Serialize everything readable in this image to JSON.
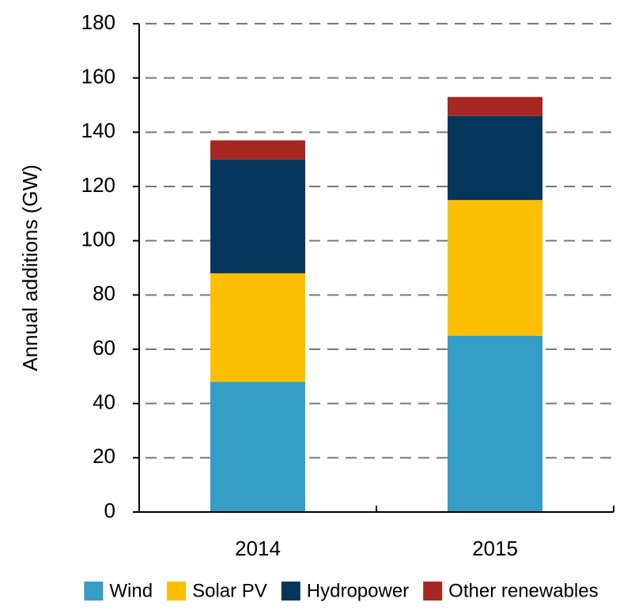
{
  "chart_data": {
    "type": "stacked_bar",
    "y_label": "Annual additions (GW)",
    "categories": [
      "2014",
      "2015"
    ],
    "series": [
      {
        "name": "Wind",
        "color": "#369dc6",
        "values": [
          48,
          65
        ]
      },
      {
        "name": "Solar PV",
        "color": "#fcbf00",
        "values": [
          40,
          50
        ]
      },
      {
        "name": "Hydropower",
        "color": "#03365a",
        "values": [
          42,
          31
        ]
      },
      {
        "name": "Other renewables",
        "color": "#a62621",
        "values": [
          7,
          7
        ]
      }
    ],
    "ylim": [
      0,
      180
    ],
    "yticks": [
      0,
      20,
      40,
      60,
      80,
      100,
      120,
      140,
      160,
      180
    ],
    "grid": true,
    "legend": "bottom"
  }
}
